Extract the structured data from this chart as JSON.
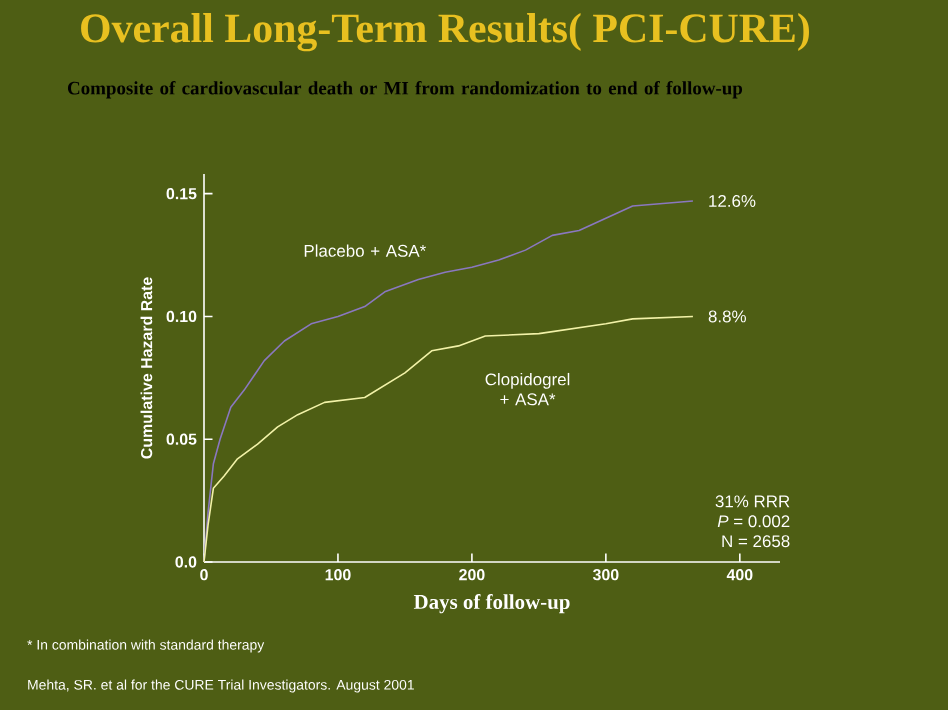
{
  "chart_data": {
    "type": "line",
    "title": "Overall Long-Term Results( PCI-CURE)",
    "subtitle": "Composite of cardiovascular death or MI from randomization to end of follow-up",
    "xlabel": "Days of follow-up",
    "ylabel": "Cumulative Hazard Rate",
    "xlim": [
      0,
      430
    ],
    "xticks": [
      0,
      100,
      200,
      300,
      400
    ],
    "ylim": [
      0,
      0.158
    ],
    "yticks": [
      {
        "value": 0,
        "label": "0.0"
      },
      0.05,
      {
        "value": 0.1,
        "label": "0.10"
      },
      0.15
    ],
    "series": [
      {
        "name": "Placebo + ASA*",
        "color": "#8a78c0",
        "x": [
          0,
          3,
          7,
          12,
          20,
          30,
          45,
          60,
          80,
          100,
          120,
          135,
          160,
          180,
          200,
          220,
          240,
          260,
          280,
          300,
          320,
          365
        ],
        "values": [
          0,
          0.02,
          0.04,
          0.05,
          0.063,
          0.07,
          0.082,
          0.09,
          0.097,
          0.1,
          0.104,
          0.11,
          0.115,
          0.118,
          0.12,
          0.123,
          0.127,
          0.133,
          0.135,
          0.14,
          0.145,
          0.147
        ]
      },
      {
        "name": "Clopidogrel + ASA*",
        "color": "#f2f2a8",
        "x": [
          0,
          3,
          7,
          15,
          25,
          40,
          55,
          70,
          90,
          120,
          150,
          170,
          190,
          210,
          250,
          300,
          320,
          365
        ],
        "values": [
          0,
          0.015,
          0.03,
          0.035,
          0.042,
          0.048,
          0.055,
          0.06,
          0.065,
          0.067,
          0.077,
          0.086,
          0.088,
          0.092,
          0.093,
          0.097,
          0.099,
          0.1
        ]
      }
    ],
    "annotations": [
      {
        "text": "12.6%",
        "x": 365,
        "y": 0.147
      },
      {
        "text": "8.8%",
        "x": 365,
        "y": 0.1
      },
      "31% RRR",
      "*P* = 0.002",
      "N = 2658",
      "* In combination with standard therapy",
      "Mehta, SR. et al for the CURE Trial Investigators. August 2001"
    ]
  }
}
